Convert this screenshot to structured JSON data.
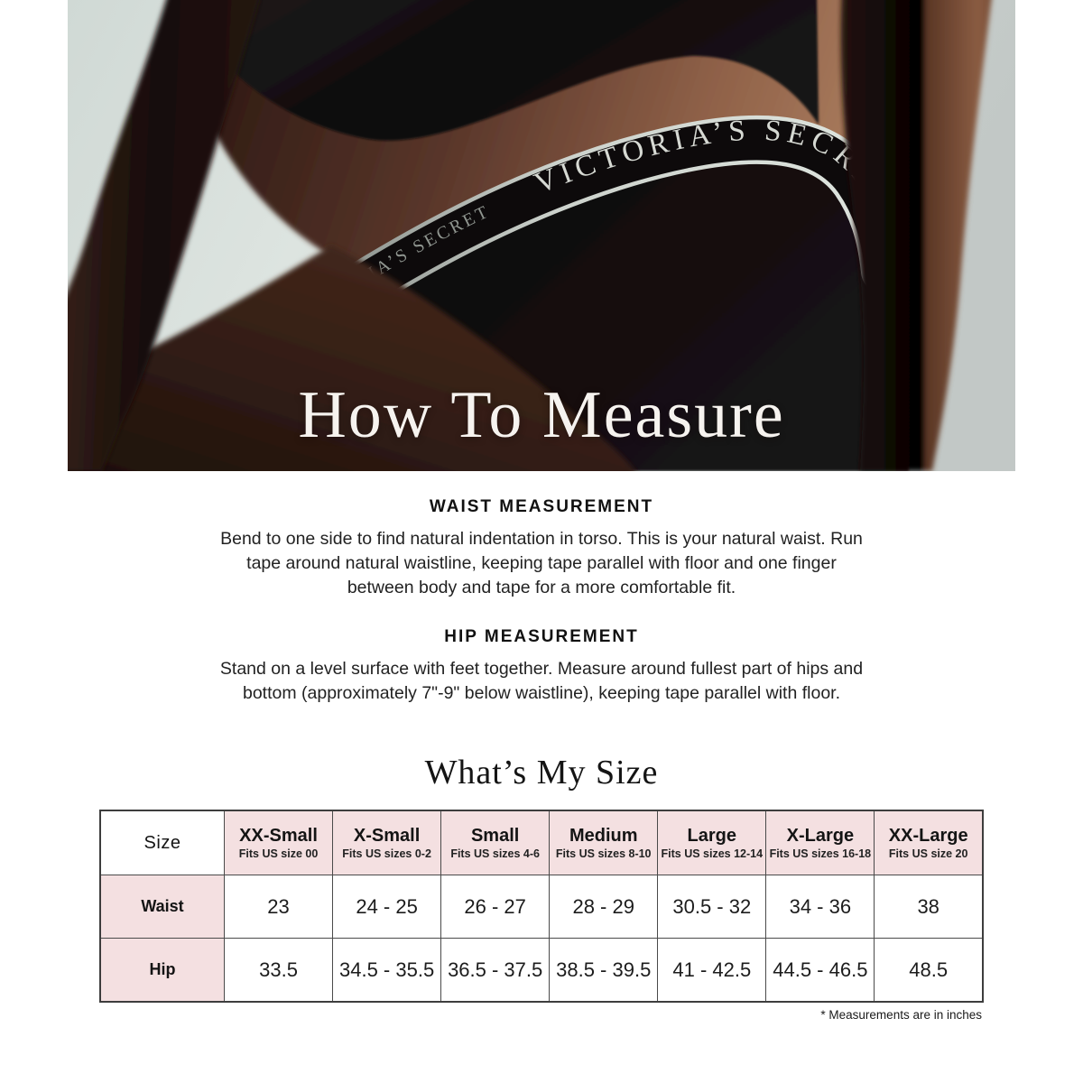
{
  "hero": {
    "title": "How To Measure",
    "waistband_text_front": "VICTORIA’S SECRET",
    "waistband_text_side": "VICTORIA’S SECRET"
  },
  "sections": [
    {
      "heading": "WAIST MEASUREMENT",
      "body": "Bend to one side to find natural indentation in torso. This is your natural waist. Run\ntape around natural waistline, keeping tape parallel with floor and one finger\nbetween body and tape for a more comfortable fit."
    },
    {
      "heading": "HIP MEASUREMENT",
      "body": "Stand on a level surface with feet together. Measure around fullest part of hips and\nbottom (approximately 7\"-9\" below waistline), keeping tape parallel with floor."
    }
  ],
  "size_table": {
    "title": "What’s My Size",
    "corner_label": "Size",
    "columns": [
      {
        "label": "XX-Small",
        "fits": "Fits US size 00"
      },
      {
        "label": "X-Small",
        "fits": "Fits US sizes 0-2"
      },
      {
        "label": "Small",
        "fits": "Fits US sizes 4-6"
      },
      {
        "label": "Medium",
        "fits": "Fits US sizes 8-10"
      },
      {
        "label": "Large",
        "fits": "Fits US sizes 12-14"
      },
      {
        "label": "X-Large",
        "fits": "Fits US sizes 16-18"
      },
      {
        "label": "XX-Large",
        "fits": "Fits US size 20"
      }
    ],
    "rows": [
      {
        "label": "Waist",
        "values": [
          "23",
          "24 - 25",
          "26 - 27",
          "28 - 29",
          "30.5 - 32",
          "34 - 36",
          "38"
        ]
      },
      {
        "label": "Hip",
        "values": [
          "33.5",
          "34.5 - 35.5",
          "36.5 - 37.5",
          "38.5 - 39.5",
          "41 - 42.5",
          "44.5 - 46.5",
          "48.5"
        ]
      }
    ],
    "footnote": "* Measurements are in inches"
  },
  "colors": {
    "accent_pink": "#f4e0e1",
    "table_border": "#4a4a4a",
    "hero_background": "#ccd5d1",
    "band_silver": "#ccd2cc"
  }
}
